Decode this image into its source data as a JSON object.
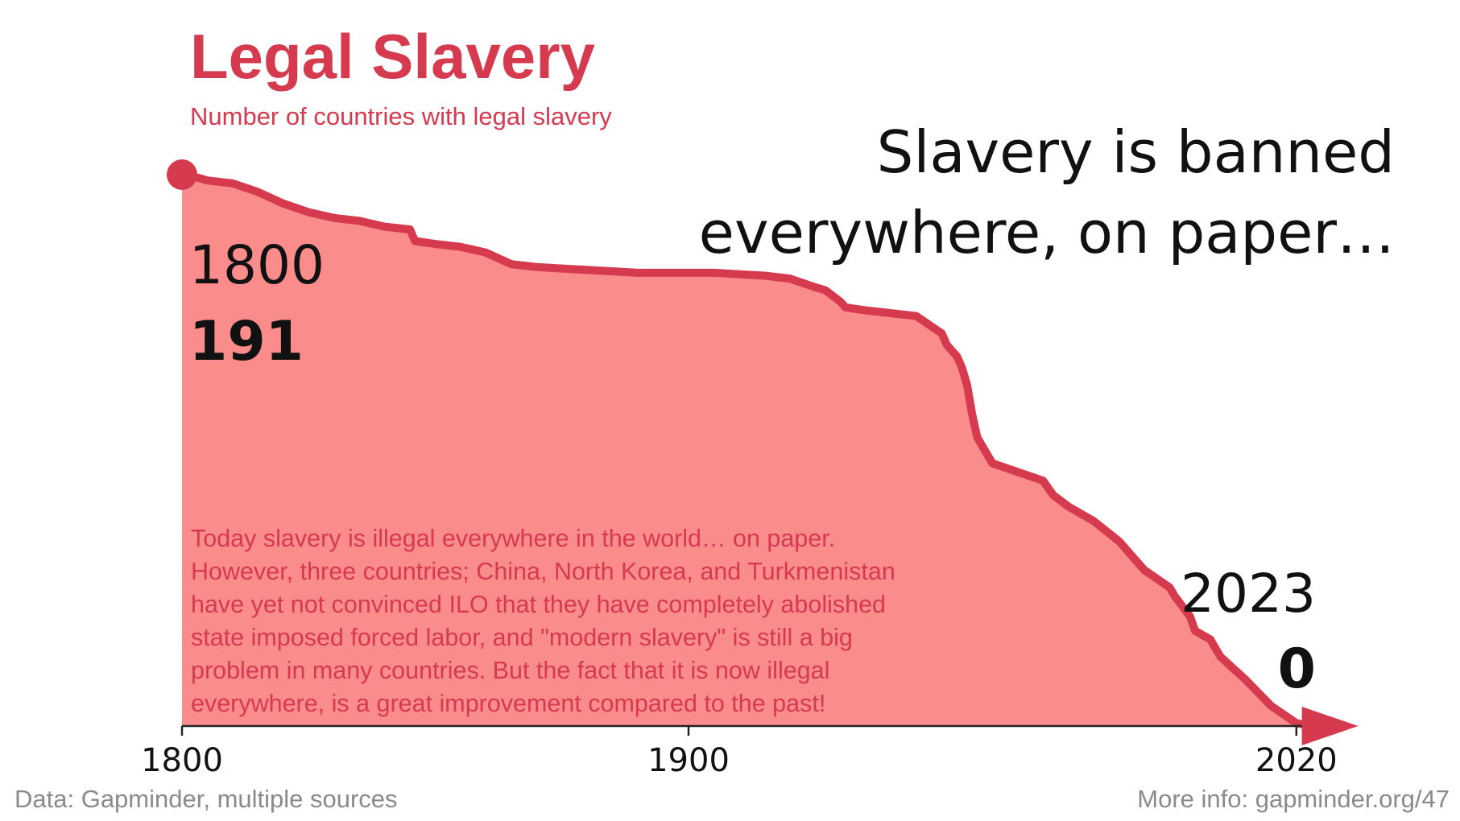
{
  "title": "Legal Slavery",
  "subtitle": "Number of countries with legal slavery",
  "headline": [
    "Slavery is banned",
    "everywhere, on paper…"
  ],
  "note_lines": [
    "Today slavery is illegal everywhere in the world… on paper.",
    "However, three countries; China, North Korea, and Turkmenistan",
    "have yet not convinced ILO that they have completely abolished",
    "state imposed forced labor, and \"modern slavery\" is still a big",
    "problem in many countries. But the fact that it is now illegal",
    "everywhere, is a great improvement compared to the past!"
  ],
  "start_label": {
    "year": "1800",
    "value": "191"
  },
  "end_label": {
    "year": "2023",
    "value": "0"
  },
  "source": "Data: Gapminder, multiple sources",
  "more_info": "More info: gapminder.org/47",
  "colors": {
    "accent": "#d63a4e",
    "area_fill": "#fb8c8c",
    "axis": "#222222"
  },
  "chart_data": {
    "type": "area",
    "title": "Legal Slavery",
    "subtitle": "Number of countries with legal slavery",
    "xlabel": "",
    "ylabel": "",
    "xlim": [
      1800,
      2023
    ],
    "ylim": [
      0,
      191
    ],
    "x_ticks": [
      1800,
      1900,
      2020
    ],
    "grid": false,
    "series": [
      {
        "x": [
          1800,
          1803,
          1805,
          1810,
          1815,
          1820,
          1825,
          1830,
          1835,
          1840,
          1845,
          1846,
          1850,
          1855,
          1860,
          1865,
          1870,
          1875,
          1880,
          1885,
          1890,
          1895,
          1900,
          1905,
          1910,
          1915,
          1920,
          1925,
          1927,
          1930,
          1931,
          1935,
          1940,
          1945,
          1950,
          1951,
          1953,
          1954,
          1955,
          1956,
          1957,
          1960,
          1965,
          1970,
          1972,
          1975,
          1980,
          1985,
          1990,
          1995,
          1996,
          1999,
          2000,
          2003,
          2005,
          2010,
          2015,
          2020,
          2023
        ],
        "values": [
          191,
          190,
          189,
          188,
          185,
          181,
          178,
          176,
          175,
          173,
          172,
          168,
          167,
          166,
          164,
          160,
          159,
          158.5,
          158,
          157.5,
          157,
          157,
          157,
          157,
          156.5,
          156,
          155,
          152,
          151,
          147,
          145,
          144,
          143,
          142,
          136,
          132,
          128,
          124,
          118,
          108,
          100,
          91,
          88,
          85,
          80,
          76,
          71,
          64,
          54,
          48,
          45,
          38,
          33,
          30,
          24,
          16,
          7,
          1,
          0
        ]
      }
    ],
    "annotations": [
      {
        "x": 1800,
        "text": "1800",
        "value": "191"
      },
      {
        "x": 2023,
        "text": "2023",
        "value": "0"
      }
    ]
  }
}
